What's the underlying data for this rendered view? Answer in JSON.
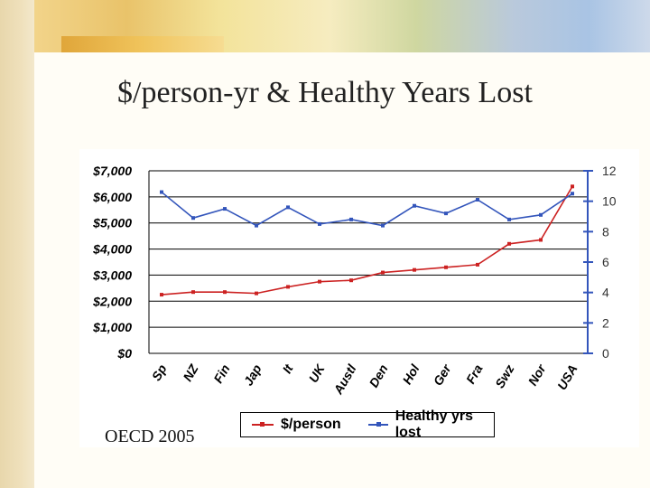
{
  "slide": {
    "title": "$/person-yr & Healthy Years Lost",
    "source": "OECD 2005"
  },
  "colors": {
    "cost": "#cc2222",
    "years": "#3355bb",
    "grid": "#000000"
  },
  "chart_data": {
    "type": "line",
    "categories": [
      "Sp",
      "NZ",
      "Fin",
      "Jap",
      "It",
      "UK",
      "Austl",
      "Den",
      "Hol",
      "Ger",
      "Fra",
      "Swz",
      "Nor",
      "USA"
    ],
    "series": [
      {
        "name": "$/person",
        "axis": "left",
        "values": [
          2250,
          2350,
          2350,
          2300,
          2550,
          2750,
          2800,
          3100,
          3200,
          3300,
          3400,
          4200,
          4350,
          6400
        ]
      },
      {
        "name": "Healthy yrs lost",
        "axis": "right",
        "values": [
          10.6,
          8.9,
          9.5,
          8.4,
          9.6,
          8.5,
          8.8,
          8.4,
          9.7,
          9.2,
          10.1,
          8.8,
          9.1,
          10.5
        ]
      }
    ],
    "ylim_left": [
      0,
      7000
    ],
    "yticks_left": [
      "$0",
      "$1,000",
      "$2,000",
      "$3,000",
      "$4,000",
      "$5,000",
      "$6,000",
      "$7,000"
    ],
    "ylim_right": [
      0,
      12
    ],
    "yticks_right": [
      "0",
      "2",
      "4",
      "6",
      "8",
      "10",
      "12"
    ],
    "grid": true,
    "legend": "bottom"
  }
}
